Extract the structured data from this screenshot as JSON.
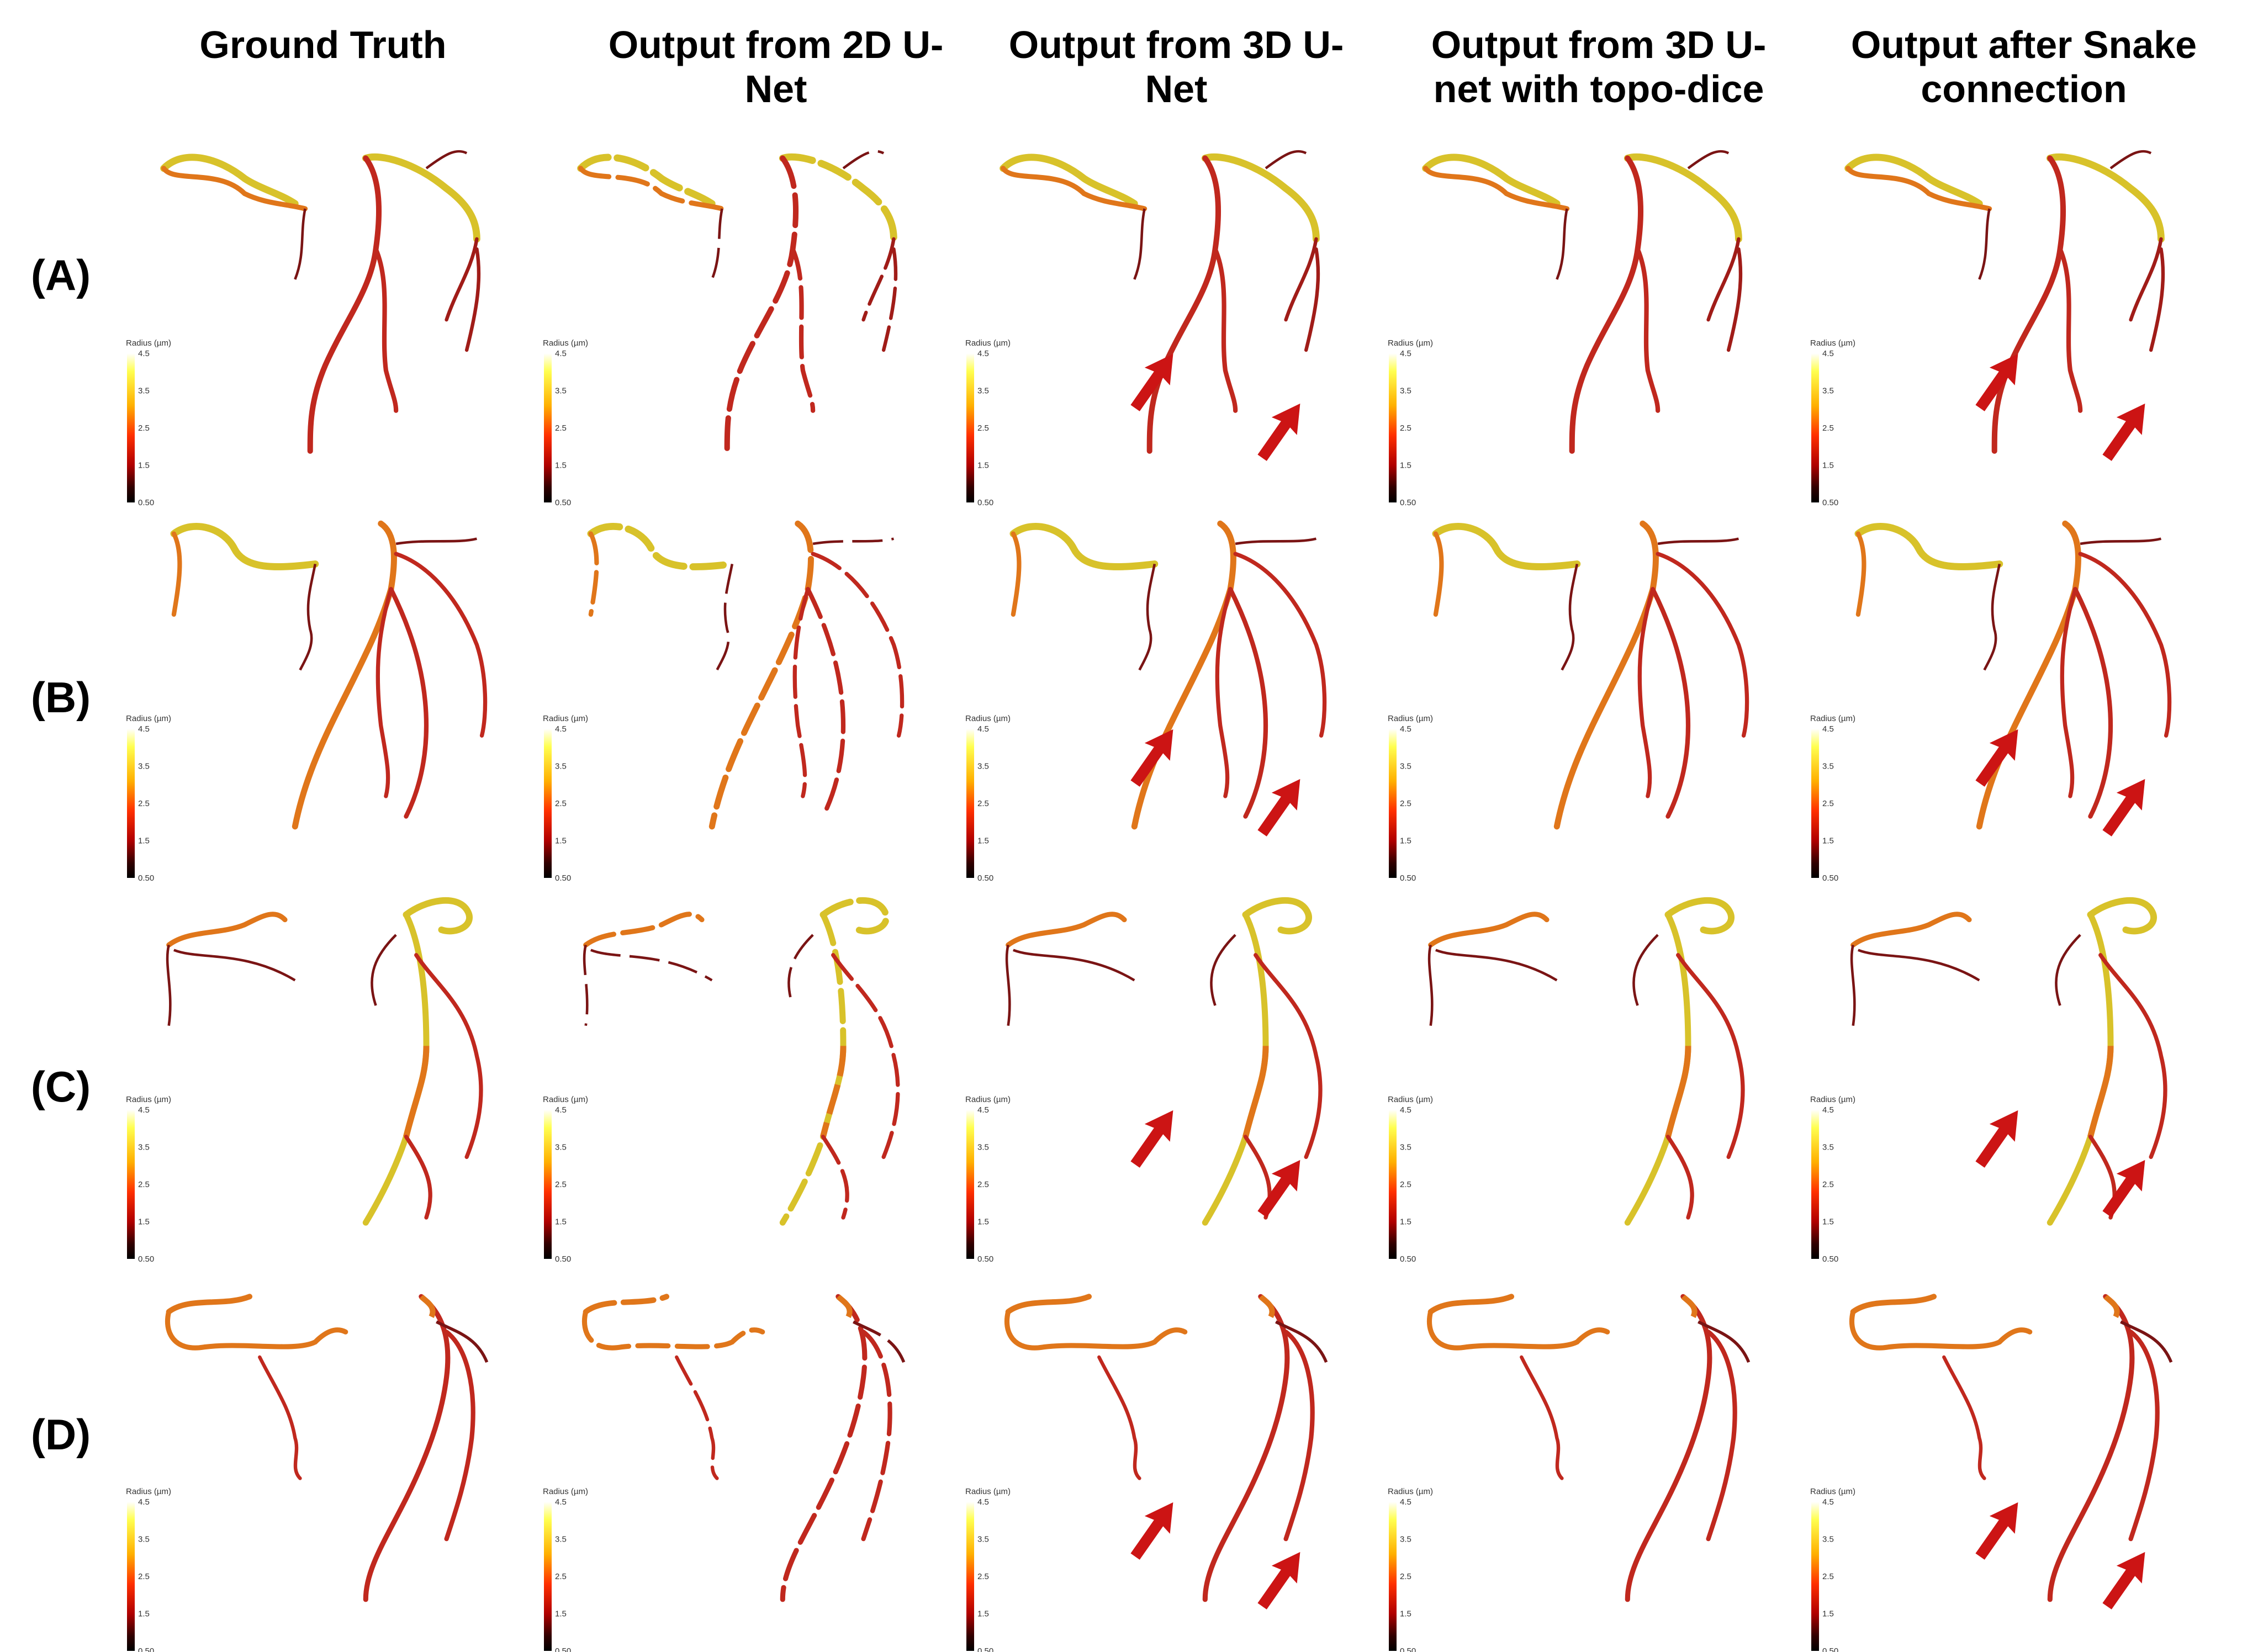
{
  "columns": [
    {
      "lines": [
        "Ground Truth"
      ]
    },
    {
      "lines": [
        "Output from 2D U-",
        "Net"
      ]
    },
    {
      "lines": [
        "Output from 3D U-",
        "Net"
      ]
    },
    {
      "lines": [
        "Output from 3D U-",
        "net with topo-dice"
      ]
    },
    {
      "lines": [
        "Output after Snake",
        "connection"
      ]
    }
  ],
  "rows": [
    "(A)",
    "(B)",
    "(C)",
    "(D)"
  ],
  "colorbar": {
    "title": "Radius (µm)",
    "ticks": [
      "4.5",
      "3.5",
      "2.5",
      "1.5",
      "0.50"
    ],
    "colors": [
      "#ffffff",
      "#ffff40",
      "#ffb000",
      "#ff4000",
      "#c00000",
      "#300000",
      "#000000"
    ]
  },
  "vessel_colors": {
    "thick": "#d8c22a",
    "medium": "#e0761a",
    "thin": "#c0281e",
    "dark": "#7a1414"
  },
  "arrow_color": "#cc1414",
  "arrows": {
    "A": [
      2,
      4
    ],
    "B": [
      2,
      4
    ],
    "C": [
      2,
      4
    ],
    "D": [
      2,
      4
    ]
  }
}
